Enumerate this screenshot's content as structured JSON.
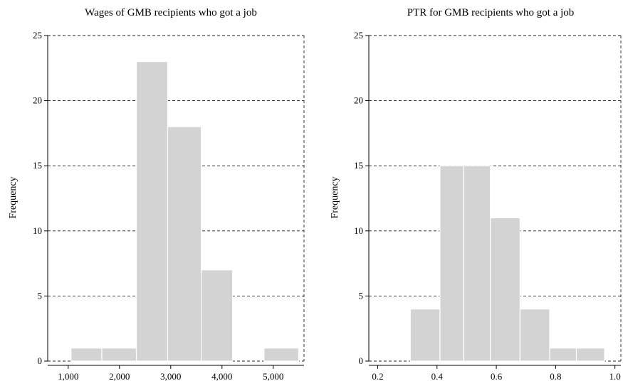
{
  "chart_data": [
    {
      "type": "bar",
      "title": "Wages of GMB recipients who got a job",
      "xlabel": "",
      "ylabel": "Frequency",
      "xlim": [
        600,
        5600
      ],
      "ylim": [
        0,
        25
      ],
      "xticks": [
        1000,
        2000,
        3000,
        4000,
        5000
      ],
      "xtick_labels": [
        "1,000",
        "2,000",
        "3,000",
        "4,000",
        "5,000"
      ],
      "yticks": [
        0,
        5,
        10,
        15,
        20,
        25
      ],
      "ytick_labels": [
        "0",
        "5",
        "10",
        "15",
        "20",
        "25"
      ],
      "grid": "horizontal-and-vertical-dashed",
      "bins": [
        {
          "x0": 1055,
          "x1": 1655,
          "value": 1
        },
        {
          "x0": 1655,
          "x1": 2330,
          "value": 1
        },
        {
          "x0": 2330,
          "x1": 2940,
          "value": 23
        },
        {
          "x0": 2940,
          "x1": 3595,
          "value": 18
        },
        {
          "x0": 3595,
          "x1": 4205,
          "value": 7
        },
        {
          "x0": 4205,
          "x1": 4820,
          "value": 0
        },
        {
          "x0": 4820,
          "x1": 5495,
          "value": 1
        }
      ]
    },
    {
      "type": "bar",
      "title": "PTR for GMB recipients who got a job",
      "xlabel": "",
      "ylabel": "Frequency",
      "xlim": [
        0.17,
        1.02
      ],
      "ylim": [
        0,
        25
      ],
      "xticks": [
        0.2,
        0.4,
        0.6,
        0.8,
        1.0
      ],
      "xtick_labels": [
        "0.2",
        "0.4",
        "0.6",
        "0.8",
        "1.0"
      ],
      "yticks": [
        0,
        5,
        10,
        15,
        20,
        25
      ],
      "ytick_labels": [
        "0",
        "5",
        "10",
        "15",
        "20",
        "25"
      ],
      "grid": "horizontal-and-vertical-dashed",
      "bins": [
        {
          "x0": 0.31,
          "x1": 0.41,
          "value": 4
        },
        {
          "x0": 0.41,
          "x1": 0.49,
          "value": 15
        },
        {
          "x0": 0.49,
          "x1": 0.58,
          "value": 15
        },
        {
          "x0": 0.58,
          "x1": 0.68,
          "value": 11
        },
        {
          "x0": 0.68,
          "x1": 0.78,
          "value": 4
        },
        {
          "x0": 0.78,
          "x1": 0.87,
          "value": 1
        },
        {
          "x0": 0.87,
          "x1": 0.965,
          "value": 1
        }
      ]
    }
  ]
}
